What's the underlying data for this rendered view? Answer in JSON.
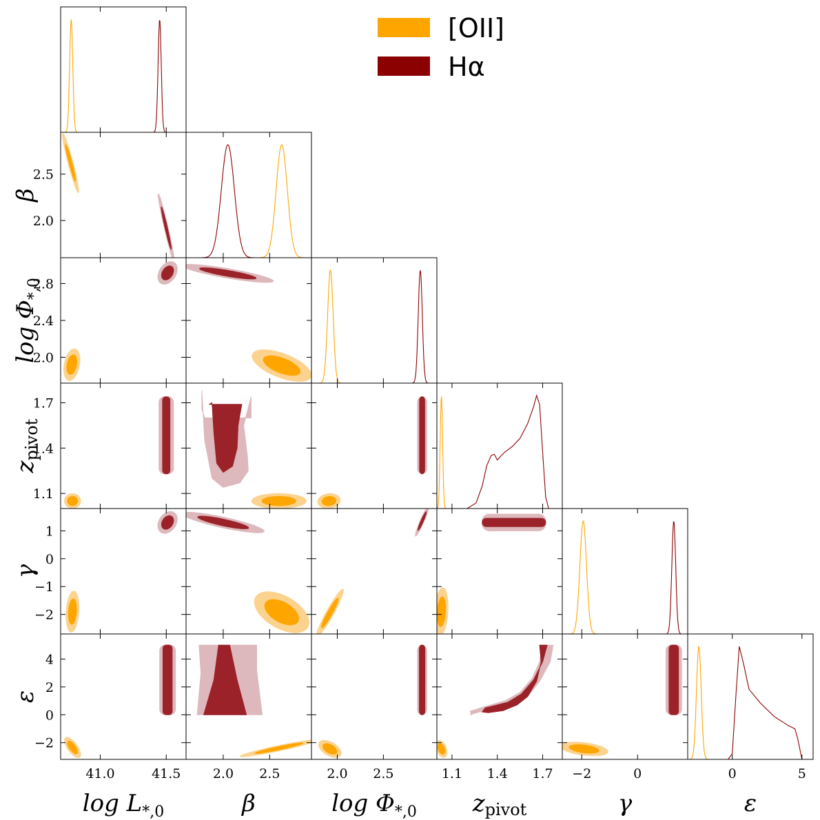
{
  "colors": {
    "oii": "#FFA500",
    "oii_95": "#FBD38E",
    "oii_68": "#FFA500",
    "ha": "#8B0000",
    "ha_95": "#DDB8BC",
    "ha_68": "#9A2228"
  },
  "legend": {
    "items": [
      {
        "key": "oii",
        "label": "[OII]"
      },
      {
        "key": "ha",
        "label": "Hα"
      }
    ],
    "placement": "top-right"
  },
  "chart_data": {
    "type": "corner",
    "title": "",
    "parameters": [
      {
        "key": "logL",
        "label": "log L*,0",
        "range": [
          40.7,
          41.65
        ],
        "ticks": [
          41.0,
          41.5
        ],
        "tick_labels": [
          "41.0",
          "41.5"
        ]
      },
      {
        "key": "beta",
        "label": "β",
        "range": [
          1.6,
          2.95
        ],
        "ticks": [
          2.0,
          2.5
        ],
        "tick_labels": [
          "2.0",
          "2.5"
        ]
      },
      {
        "key": "logPhi",
        "label": "log Φ*,0",
        "range": [
          1.72,
          3.08
        ],
        "ticks": [
          2.0,
          2.4,
          2.8
        ],
        "tick_labels": [
          "2.0",
          "2.4",
          "2.8"
        ],
        "x_ticks": [
          2.0,
          2.5
        ],
        "x_tick_labels": [
          "2.0",
          "2.5"
        ]
      },
      {
        "key": "zpivot",
        "label": "z_pivot",
        "range": [
          1.0,
          1.83
        ],
        "ticks": [
          1.1,
          1.4,
          1.7
        ],
        "tick_labels": [
          "1.1",
          "1.4",
          "1.7"
        ]
      },
      {
        "key": "gamma",
        "label": "γ",
        "range": [
          -2.7,
          1.8
        ],
        "ticks": [
          -2,
          -1,
          0,
          1
        ],
        "tick_labels": [
          "−2",
          "−1",
          "0",
          "1"
        ],
        "x_ticks": [
          -2,
          0
        ],
        "x_tick_labels": [
          "−2",
          "0"
        ]
      },
      {
        "key": "epsilon",
        "label": "ε",
        "range": [
          -3.2,
          5.8
        ],
        "ticks": [
          -2,
          0,
          2,
          4
        ],
        "tick_labels": [
          "−2",
          "0",
          "2",
          "4"
        ],
        "x_ticks": [
          0,
          5
        ],
        "x_tick_labels": [
          "0",
          "5"
        ]
      }
    ],
    "series": [
      {
        "name": "[OII]",
        "color_key": "oii",
        "marginals": {
          "logL": {
            "mean": 40.78,
            "sd": 0.012
          },
          "beta": {
            "mean": 2.63,
            "sd": 0.06
          },
          "logPhi": {
            "mean": 1.925,
            "sd": 0.03
          },
          "zpivot": {
            "mean": 1.03,
            "sd": 0.008
          },
          "gamma": {
            "mean": -1.95,
            "sd": 0.12
          },
          "epsilon": {
            "mean": -2.4,
            "sd": 0.17
          }
        },
        "blobs": {
          "logL-beta": {
            "cx": 40.775,
            "cy": 2.62,
            "sx": 0.025,
            "sy": 0.13,
            "corr": -0.95
          },
          "logL-logPhi": {
            "cx": 40.785,
            "cy": 1.92,
            "sx": 0.025,
            "sy": 0.07,
            "corr": 0.3
          },
          "logL-zpivot": {
            "cx": 40.79,
            "cy": 1.05,
            "sx": 0.025,
            "sy": 0.02,
            "corr": 0.0
          },
          "logL-gamma": {
            "cx": 40.79,
            "cy": -1.9,
            "sx": 0.02,
            "sy": 0.3,
            "corr": 0.2
          },
          "logL-epsilon": {
            "cx": 40.79,
            "cy": -2.35,
            "sx": 0.025,
            "sy": 0.3,
            "corr": -0.7
          },
          "beta-logPhi": {
            "cx": 2.63,
            "cy": 1.91,
            "sx": 0.13,
            "sy": 0.07,
            "corr": -0.6
          },
          "beta-zpivot": {
            "cx": 2.6,
            "cy": 1.05,
            "sx": 0.12,
            "sy": 0.02,
            "corr": 0.0
          },
          "beta-gamma": {
            "cx": 2.63,
            "cy": -1.92,
            "sx": 0.12,
            "sy": 0.3,
            "corr": -0.5
          },
          "beta-epsilon": {
            "cx": 2.6,
            "cy": -2.4,
            "sx": 0.17,
            "sy": 0.25,
            "corr": 0.95
          },
          "logPhi-zpivot": {
            "cx": 1.91,
            "cy": 1.05,
            "sx": 0.05,
            "sy": 0.02,
            "corr": 0.1
          },
          "logPhi-gamma": {
            "cx": 1.92,
            "cy": -1.95,
            "sx": 0.06,
            "sy": 0.35,
            "corr": 0.95
          },
          "logPhi-epsilon": {
            "cx": 1.92,
            "cy": -2.45,
            "sx": 0.05,
            "sy": 0.25,
            "corr": -0.5
          },
          "zpivot-gamma": {
            "cx": 1.03,
            "cy": -1.9,
            "sx": 0.018,
            "sy": 0.35,
            "corr": 0.2
          },
          "zpivot-epsilon": {
            "cx": 1.03,
            "cy": -2.45,
            "sx": 0.015,
            "sy": 0.25,
            "corr": -0.4
          },
          "gamma-epsilon": {
            "cx": -1.92,
            "cy": -2.45,
            "sx": 0.35,
            "sy": 0.2,
            "corr": -0.4
          }
        }
      },
      {
        "name": "Hα",
        "color_key": "ha",
        "marginals": {
          "logL": {
            "mean": 41.45,
            "sd": 0.012
          },
          "beta": {
            "mean": 2.05,
            "sd": 0.07
          },
          "logPhi": {
            "mean": 2.9,
            "sd": 0.022
          },
          "zpivot": {
            "points": [
              [
                1.2,
                0
              ],
              [
                1.26,
                0.05
              ],
              [
                1.3,
                0.2
              ],
              [
                1.33,
                0.38
              ],
              [
                1.36,
                0.47
              ],
              [
                1.38,
                0.48
              ],
              [
                1.4,
                0.43
              ],
              [
                1.42,
                0.46
              ],
              [
                1.45,
                0.5
              ],
              [
                1.5,
                0.55
              ],
              [
                1.55,
                0.62
              ],
              [
                1.6,
                0.75
              ],
              [
                1.64,
                0.9
              ],
              [
                1.66,
                1.0
              ],
              [
                1.68,
                0.92
              ],
              [
                1.7,
                0.5
              ],
              [
                1.72,
                0.1
              ],
              [
                1.74,
                0
              ]
            ]
          },
          "gamma": {
            "mean": 1.3,
            "sd": 0.07
          },
          "epsilon": {
            "points": [
              [
                -0.3,
                0
              ],
              [
                0.0,
                0.05
              ],
              [
                0.25,
                0.55
              ],
              [
                0.5,
                1.0
              ],
              [
                0.8,
                0.85
              ],
              [
                1.2,
                0.62
              ],
              [
                2.0,
                0.5
              ],
              [
                3.0,
                0.38
              ],
              [
                4.0,
                0.3
              ],
              [
                4.5,
                0.27
              ],
              [
                4.7,
                0.18
              ],
              [
                5.0,
                0.0
              ]
            ]
          }
        },
        "blobs": {
          "logL-beta": {
            "cx": 41.5,
            "cy": 1.92,
            "sx": 0.025,
            "sy": 0.15,
            "corr": -0.97
          },
          "logL-logPhi": {
            "cx": 41.51,
            "cy": 2.915,
            "sx": 0.03,
            "sy": 0.05,
            "corr": 0.35
          },
          "beta-logPhi": {
            "cx": 2.05,
            "cy": 2.91,
            "sx": 0.2,
            "sy": 0.04,
            "corr": -0.85
          },
          "logL-gamma": {
            "cx": 41.51,
            "cy": 1.3,
            "sx": 0.03,
            "sy": 0.16,
            "corr": 0.3
          },
          "beta-gamma": {
            "cx": 2.0,
            "cy": 1.3,
            "sx": 0.18,
            "sy": 0.15,
            "corr": -0.85
          },
          "logPhi-gamma": {
            "cx": 2.92,
            "cy": 1.35,
            "sx": 0.03,
            "sy": 0.22,
            "corr": 0.95
          }
        },
        "bands": {
          "logL-zpivot": {
            "vertical": true,
            "from": 1.23,
            "to": 1.74,
            "center": 41.5,
            "w95": 0.055,
            "w68": 0.028
          },
          "logPhi-zpivot": {
            "vertical": true,
            "from": 1.23,
            "to": 1.74,
            "center": 2.92,
            "w95": 0.05,
            "w68": 0.028
          },
          "logL-epsilon": {
            "vertical": true,
            "from": 0.0,
            "to": 5.0,
            "center": 41.51,
            "w95": 0.06,
            "w68": 0.035
          },
          "logPhi-epsilon": {
            "vertical": true,
            "from": 0.0,
            "to": 5.0,
            "center": 2.92,
            "w95": 0.05,
            "w68": 0.03
          },
          "gamma-epsilon": {
            "vertical": true,
            "from": 0.0,
            "to": 5.0,
            "center": 1.3,
            "w95": 0.28,
            "w68": 0.17
          },
          "zpivot-gamma": {
            "vertical": false,
            "from": 1.3,
            "to": 1.72,
            "center": 1.3,
            "w95": 0.3,
            "w68": 0.15
          }
        },
        "special": {
          "beta-zpivot": "vertical region beta 1.9-2.15, zpivot 1.15-1.74, widening at top",
          "beta-epsilon": "triangular region, narrow at epsilon=5 around beta 2.0, broad at epsilon 0 (beta 1.75-2.25)",
          "zpivot-epsilon": "curved banana from (1.35, 0.3) rising to (1.7, 5.0)"
        }
      }
    ]
  }
}
